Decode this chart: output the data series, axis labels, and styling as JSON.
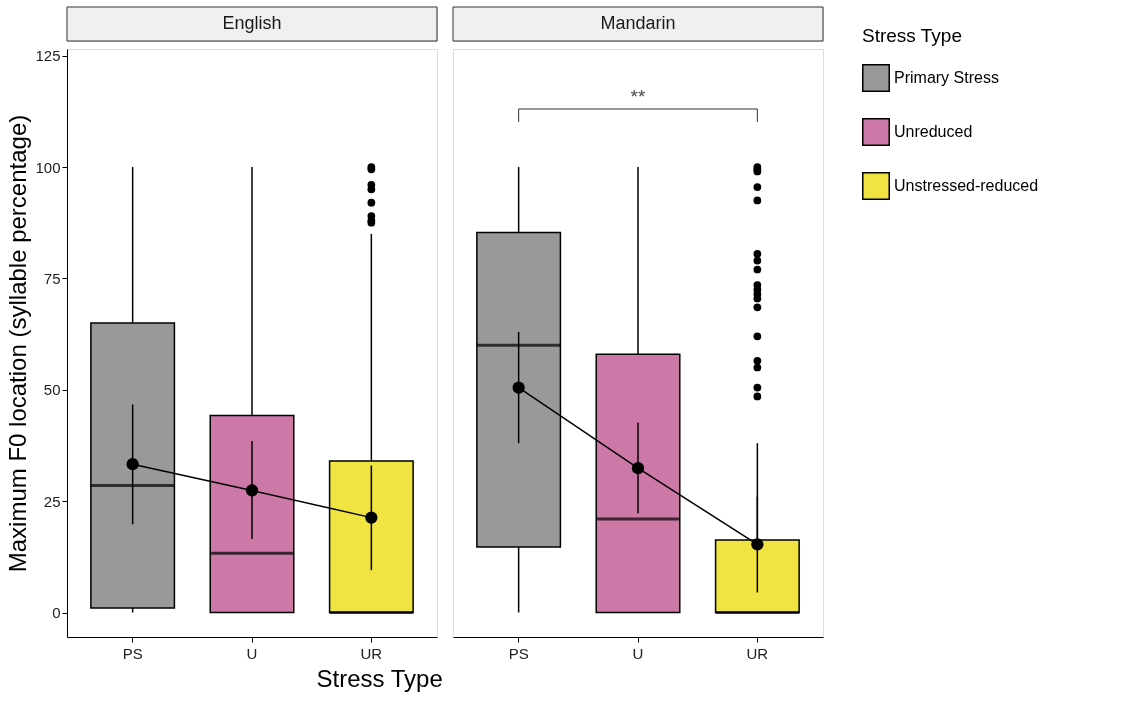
{
  "chart_data": [
    {
      "type": "box",
      "title": "English",
      "categories": [
        "PS",
        "U",
        "UR"
      ],
      "xlabel": "Stress Type",
      "ylabel": "Maximum F0 location (syllable percentage)",
      "ylim": [
        -5.5,
        126.5
      ],
      "yticks": [
        0,
        25,
        50,
        75,
        100,
        125
      ],
      "grid": false,
      "legend": "right",
      "legend_title": "Stress Type",
      "series": [
        {
          "name": "Primary Stress",
          "color": "#999999",
          "x": [
            "PS"
          ],
          "boxes": [
            {
              "low": 0,
              "q1": 1,
              "median": 28.5,
              "q3": 65,
              "high": 100
            }
          ]
        },
        {
          "name": "Unreduced",
          "color": "#cc79a7",
          "x": [
            "U"
          ],
          "boxes": [
            {
              "low": 0,
              "q1": 0,
              "median": 13.3,
              "q3": 44.2,
              "high": 100
            }
          ]
        },
        {
          "name": "Unstressed-reduced",
          "color": "#f0e442",
          "x": [
            "UR"
          ],
          "boxes": [
            {
              "low": 0,
              "q1": 0,
              "median": 0,
              "q3": 34,
              "high": 85,
              "outliers": [
                100,
                99.5,
                96,
                95,
                92,
                89,
                88,
                87.5
              ]
            }
          ]
        },
        {
          "type": "line",
          "color": "#000000",
          "marker": "circle",
          "values": [
            33.3,
            27.4,
            21.3
          ],
          "errors": [
            [
              19.8,
              46.7
            ],
            [
              16.5,
              38.5
            ],
            [
              9.5,
              33
            ]
          ]
        }
      ]
    },
    {
      "type": "box",
      "title": "Mandarin",
      "categories": [
        "PS",
        "U",
        "UR"
      ],
      "ylim": [
        -5.5,
        126.5
      ],
      "yticks": [
        0,
        25,
        50,
        75,
        100,
        125
      ],
      "tick_labels": "x",
      "grid": false,
      "annotations": [
        "**"
      ],
      "series": [
        {
          "color": "#999999",
          "x": [
            "PS"
          ],
          "boxes": [
            {
              "low": 0,
              "q1": 14.7,
              "median": 60,
              "q3": 85.3,
              "high": 100
            }
          ]
        },
        {
          "color": "#cc79a7",
          "x": [
            "U"
          ],
          "boxes": [
            {
              "low": 0,
              "q1": 0,
              "median": 21,
              "q3": 58,
              "high": 100
            }
          ]
        },
        {
          "color": "#f0e442",
          "x": [
            "UR"
          ],
          "boxes": [
            {
              "low": 0,
              "q1": 0,
              "median": 0,
              "q3": 16.3,
              "high": 38,
              "outliers": [
                100,
                99.5,
                99,
                95.5,
                92.5,
                80.5,
                79,
                77,
                73.5,
                72.5,
                71.5,
                70.5,
                68.5,
                62,
                56.5,
                55,
                50.5,
                48.5
              ]
            }
          ]
        },
        {
          "type": "line",
          "color": "#000000",
          "marker": "circle",
          "values": [
            50.5,
            32.4,
            15.3
          ],
          "errors": [
            [
              38,
              63
            ],
            [
              22.3,
              42.6
            ],
            [
              4.5,
              26
            ]
          ]
        }
      ]
    }
  ]
}
